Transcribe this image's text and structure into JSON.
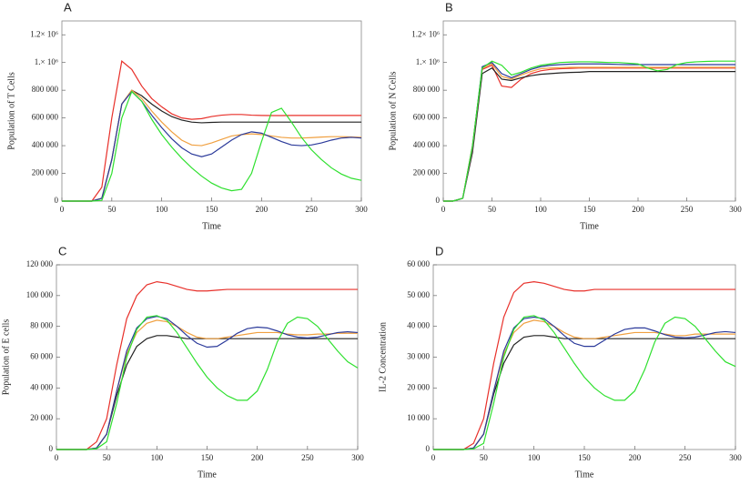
{
  "chart_data": [
    {
      "type": "line",
      "title": "A",
      "xlabel": "Time",
      "ylabel": "Population of T Cells",
      "x": [
        0,
        10,
        20,
        30,
        40,
        50,
        60,
        70,
        80,
        90,
        100,
        110,
        120,
        130,
        140,
        150,
        160,
        170,
        180,
        190,
        200,
        210,
        220,
        230,
        240,
        250,
        260,
        270,
        280,
        290,
        300
      ],
      "xlim": [
        0,
        300
      ],
      "xticks": [
        0,
        50,
        100,
        150,
        200,
        250,
        300
      ],
      "ylim": [
        0,
        1300000
      ],
      "yticks": [
        0,
        {
          "value": 200000,
          "label": "200 000"
        },
        {
          "value": 400000,
          "label": "400 000"
        },
        {
          "value": 600000,
          "label": "600 000"
        },
        {
          "value": 800000,
          "label": "800 000"
        },
        {
          "value": 1000000,
          "label": "1.× 10⁶"
        },
        {
          "value": 1200000,
          "label": "1.2× 10⁶"
        }
      ],
      "series": [
        {
          "color": "#e8302a",
          "values": [
            0,
            0,
            0,
            0,
            100000,
            600000,
            1010000,
            950000,
            830000,
            740000,
            680000,
            630000,
            600000,
            590000,
            595000,
            610000,
            620000,
            625000,
            625000,
            620000,
            618000,
            617000,
            617000,
            618000,
            618000,
            618000,
            618000,
            618000,
            618000,
            618000,
            618000
          ]
        },
        {
          "color": "#222222",
          "values": [
            0,
            0,
            0,
            0,
            20000,
            300000,
            700000,
            800000,
            760000,
            700000,
            650000,
            610000,
            585000,
            570000,
            565000,
            568000,
            570000,
            570000,
            570000,
            570000,
            570000,
            570000,
            570000,
            570000,
            570000,
            570000,
            570000,
            570000,
            570000,
            570000,
            570000
          ]
        },
        {
          "color": "#f0a040",
          "values": [
            0,
            0,
            0,
            0,
            20000,
            300000,
            700000,
            800000,
            740000,
            650000,
            570000,
            500000,
            440000,
            405000,
            400000,
            420000,
            445000,
            470000,
            480000,
            485000,
            480000,
            470000,
            460000,
            455000,
            455000,
            458000,
            462000,
            465000,
            465000,
            463000,
            460000
          ]
        },
        {
          "color": "#2b3a9a",
          "values": [
            0,
            0,
            0,
            0,
            20000,
            300000,
            700000,
            790000,
            720000,
            620000,
            530000,
            450000,
            385000,
            340000,
            320000,
            340000,
            390000,
            440000,
            480000,
            500000,
            490000,
            460000,
            430000,
            405000,
            400000,
            405000,
            420000,
            440000,
            455000,
            460000,
            455000
          ]
        },
        {
          "color": "#2ee02e",
          "values": [
            0,
            0,
            0,
            0,
            5000,
            200000,
            600000,
            790000,
            720000,
            590000,
            480000,
            390000,
            310000,
            240000,
            180000,
            130000,
            95000,
            75000,
            85000,
            200000,
            430000,
            640000,
            670000,
            570000,
            460000,
            370000,
            300000,
            240000,
            195000,
            165000,
            150000
          ]
        }
      ]
    },
    {
      "type": "line",
      "title": "B",
      "xlabel": "Time",
      "ylabel": "Population of N Cells",
      "x": [
        0,
        10,
        20,
        30,
        40,
        50,
        60,
        70,
        80,
        90,
        100,
        110,
        120,
        130,
        140,
        150,
        160,
        170,
        180,
        190,
        200,
        210,
        220,
        230,
        240,
        250,
        260,
        270,
        280,
        290,
        300
      ],
      "xlim": [
        0,
        300
      ],
      "xticks": [
        0,
        50,
        100,
        150,
        200,
        250,
        300
      ],
      "ylim": [
        0,
        1300000
      ],
      "yticks": [
        0,
        {
          "value": 200000,
          "label": "200 000"
        },
        {
          "value": 400000,
          "label": "400 000"
        },
        {
          "value": 600000,
          "label": "600 000"
        },
        {
          "value": 800000,
          "label": "800 000"
        },
        {
          "value": 1000000,
          "label": "1.× 10⁶"
        },
        {
          "value": 1200000,
          "label": "1.2× 10⁶"
        }
      ],
      "series": [
        {
          "color": "#e8302a",
          "values": [
            0,
            0,
            20000,
            400000,
            950000,
            980000,
            830000,
            820000,
            880000,
            920000,
            940000,
            950000,
            955000,
            958000,
            960000,
            960000,
            960000,
            960000,
            960000,
            960000,
            960000,
            960000,
            960000,
            960000,
            960000,
            960000,
            960000,
            960000,
            960000,
            960000,
            960000
          ]
        },
        {
          "color": "#222222",
          "values": [
            0,
            0,
            20000,
            350000,
            920000,
            960000,
            880000,
            870000,
            890000,
            905000,
            915000,
            920000,
            925000,
            928000,
            930000,
            935000,
            935000,
            935000,
            935000,
            935000,
            935000,
            935000,
            935000,
            935000,
            935000,
            935000,
            935000,
            935000,
            935000,
            935000,
            935000
          ]
        },
        {
          "color": "#f0a040",
          "values": [
            0,
            0,
            20000,
            380000,
            960000,
            990000,
            900000,
            880000,
            910000,
            935000,
            955000,
            960000,
            963000,
            965000,
            965000,
            965000,
            965000,
            965000,
            965000,
            965000,
            965000,
            965000,
            965000,
            965000,
            965000,
            965000,
            965000,
            965000,
            965000,
            965000,
            965000
          ]
        },
        {
          "color": "#2b3a9a",
          "values": [
            0,
            0,
            20000,
            390000,
            970000,
            1000000,
            920000,
            890000,
            920000,
            950000,
            970000,
            980000,
            985000,
            988000,
            990000,
            990000,
            990000,
            988000,
            986000,
            985000,
            985000,
            985000,
            985000,
            985000,
            985000,
            985000,
            985000,
            985000,
            985000,
            985000,
            985000
          ]
        },
        {
          "color": "#2ee02e",
          "values": [
            0,
            0,
            20000,
            400000,
            960000,
            1010000,
            980000,
            910000,
            930000,
            960000,
            980000,
            990000,
            1000000,
            1003000,
            1005000,
            1005000,
            1003000,
            1000000,
            1000000,
            995000,
            990000,
            960000,
            940000,
            950000,
            985000,
            1000000,
            1005000,
            1008000,
            1010000,
            1010000,
            1010000
          ]
        }
      ]
    },
    {
      "type": "line",
      "title": "C",
      "xlabel": "Time",
      "ylabel": "Population of E cells",
      "x": [
        0,
        10,
        20,
        30,
        40,
        50,
        60,
        70,
        80,
        90,
        100,
        110,
        120,
        130,
        140,
        150,
        160,
        170,
        180,
        190,
        200,
        210,
        220,
        230,
        240,
        250,
        260,
        270,
        280,
        290,
        300
      ],
      "xlim": [
        0,
        300
      ],
      "xticks": [
        0,
        50,
        100,
        150,
        200,
        250,
        300
      ],
      "ylim": [
        0,
        120000
      ],
      "yticks": [
        0,
        {
          "value": 20000,
          "label": "20 000"
        },
        {
          "value": 40000,
          "label": "40 000"
        },
        {
          "value": 60000,
          "label": "60 000"
        },
        {
          "value": 80000,
          "label": "80 000"
        },
        {
          "value": 100000,
          "label": "100 000"
        },
        {
          "value": 120000,
          "label": "120 000"
        }
      ],
      "series": [
        {
          "color": "#e8302a",
          "values": [
            0,
            0,
            0,
            0,
            5000,
            20000,
            55000,
            85000,
            100000,
            107000,
            109000,
            108000,
            106000,
            104000,
            103000,
            103000,
            103500,
            104000,
            104000,
            104000,
            104000,
            104000,
            104000,
            104000,
            104000,
            104000,
            104000,
            104000,
            104000,
            104000,
            104000
          ]
        },
        {
          "color": "#222222",
          "values": [
            0,
            0,
            0,
            0,
            1000,
            10000,
            35000,
            55000,
            67000,
            72000,
            74000,
            74000,
            73000,
            72000,
            72000,
            72000,
            72000,
            72000,
            72000,
            72000,
            72000,
            72000,
            72000,
            72000,
            72000,
            72000,
            72000,
            72000,
            72000,
            72000,
            72000
          ]
        },
        {
          "color": "#f0a040",
          "values": [
            0,
            0,
            0,
            0,
            1000,
            10000,
            38000,
            62000,
            76000,
            82000,
            84000,
            83000,
            80000,
            76000,
            73000,
            72000,
            72000,
            73000,
            74000,
            75000,
            76000,
            76000,
            76000,
            75000,
            74500,
            74500,
            75000,
            75000,
            75500,
            75500,
            75500
          ]
        },
        {
          "color": "#2b3a9a",
          "values": [
            0,
            0,
            0,
            0,
            1000,
            10000,
            38000,
            64000,
            79000,
            85000,
            86500,
            85000,
            80000,
            74000,
            69000,
            66500,
            67000,
            71000,
            75500,
            78500,
            79500,
            79000,
            77000,
            74500,
            73000,
            72500,
            73000,
            74500,
            76000,
            76500,
            76000
          ]
        },
        {
          "color": "#2ee02e",
          "values": [
            0,
            0,
            0,
            0,
            500,
            5000,
            30000,
            60000,
            78000,
            86000,
            87000,
            84000,
            76000,
            66000,
            56000,
            47000,
            40000,
            35000,
            32000,
            32000,
            38000,
            52000,
            70000,
            82000,
            86000,
            85000,
            80000,
            72000,
            64000,
            57000,
            53000
          ]
        }
      ]
    },
    {
      "type": "line",
      "title": "D",
      "xlabel": "Time",
      "ylabel": "IL-2 Concentration",
      "x": [
        0,
        10,
        20,
        30,
        40,
        50,
        60,
        70,
        80,
        90,
        100,
        110,
        120,
        130,
        140,
        150,
        160,
        170,
        180,
        190,
        200,
        210,
        220,
        230,
        240,
        250,
        260,
        270,
        280,
        290,
        300
      ],
      "xlim": [
        0,
        300
      ],
      "xticks": [
        0,
        50,
        100,
        150,
        200,
        250,
        300
      ],
      "ylim": [
        0,
        60000
      ],
      "yticks": [
        0,
        {
          "value": 10000,
          "label": "10 000"
        },
        {
          "value": 20000,
          "label": "20 000"
        },
        {
          "value": 30000,
          "label": "30 000"
        },
        {
          "value": 40000,
          "label": "40 000"
        },
        {
          "value": 50000,
          "label": "50 000"
        },
        {
          "value": 60000,
          "label": "60 000"
        }
      ],
      "series": [
        {
          "color": "#e8302a",
          "values": [
            0,
            0,
            0,
            0,
            2000,
            10000,
            28000,
            43000,
            51000,
            54000,
            54500,
            54000,
            53000,
            52000,
            51500,
            51500,
            52000,
            52000,
            52000,
            52000,
            52000,
            52000,
            52000,
            52000,
            52000,
            52000,
            52000,
            52000,
            52000,
            52000,
            52000
          ]
        },
        {
          "color": "#222222",
          "values": [
            0,
            0,
            0,
            0,
            500,
            5000,
            18000,
            28000,
            34000,
            36500,
            37000,
            37000,
            36500,
            36000,
            36000,
            36000,
            36000,
            36000,
            36000,
            36000,
            36000,
            36000,
            36000,
            36000,
            36000,
            36000,
            36000,
            36000,
            36000,
            36000,
            36000
          ]
        },
        {
          "color": "#f0a040",
          "values": [
            0,
            0,
            0,
            0,
            500,
            5000,
            19000,
            31000,
            38000,
            41000,
            42000,
            41500,
            40000,
            38000,
            36500,
            36000,
            36000,
            36500,
            37000,
            37500,
            38000,
            38000,
            38000,
            37500,
            37000,
            37000,
            37500,
            37500,
            37500,
            37500,
            37500
          ]
        },
        {
          "color": "#2b3a9a",
          "values": [
            0,
            0,
            0,
            0,
            500,
            5000,
            19000,
            32000,
            39500,
            42500,
            43000,
            42500,
            40000,
            37000,
            34500,
            33500,
            33500,
            35500,
            37500,
            39000,
            39500,
            39500,
            38500,
            37300,
            36500,
            36300,
            36500,
            37200,
            38000,
            38300,
            38000
          ]
        },
        {
          "color": "#2ee02e",
          "values": [
            0,
            0,
            0,
            0,
            200,
            2000,
            15000,
            30000,
            39000,
            43000,
            43500,
            42000,
            38000,
            33000,
            28000,
            23500,
            20000,
            17500,
            16000,
            16000,
            19000,
            26000,
            35000,
            41000,
            43000,
            42500,
            40000,
            36000,
            32000,
            28500,
            27000
          ]
        }
      ]
    }
  ]
}
